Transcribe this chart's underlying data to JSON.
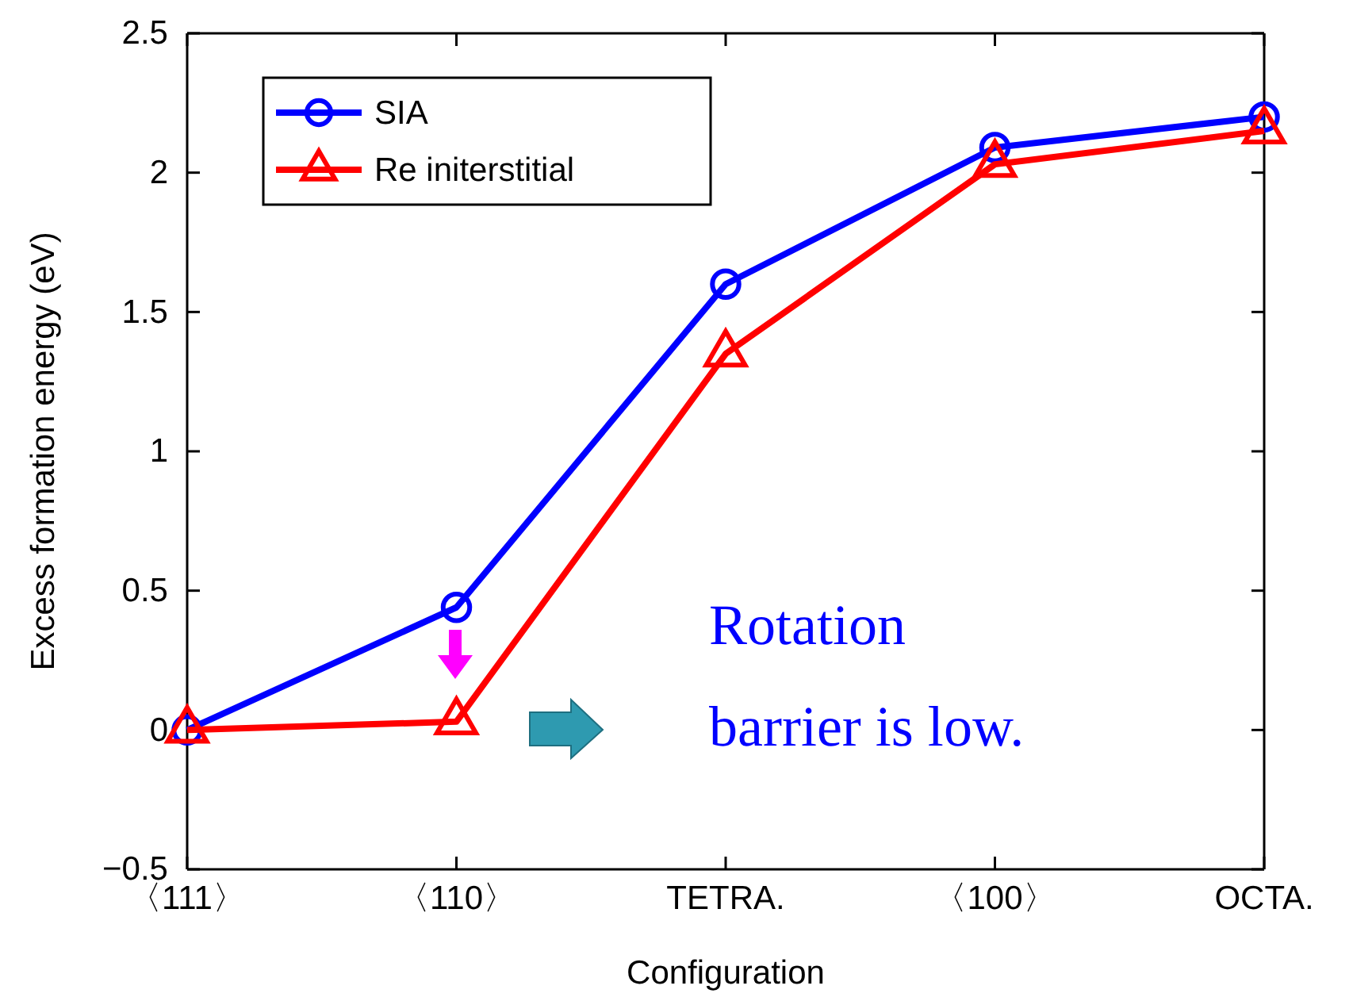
{
  "chart_data": {
    "type": "line",
    "xlabel": "Configuration",
    "ylabel": "Excess formation energy (eV)",
    "categories": [
      "〈111〉",
      "〈110〉",
      "TETRA.",
      "〈100〉",
      "OCTA."
    ],
    "series": [
      {
        "name": "SIA",
        "color": "#0000ff",
        "marker": "circle",
        "values": [
          0,
          0.44,
          1.6,
          2.09,
          2.2
        ]
      },
      {
        "name": "Re initerstitial",
        "color": "#ff0000",
        "marker": "triangle",
        "values": [
          0,
          0.03,
          1.35,
          2.03,
          2.15
        ]
      }
    ],
    "ylim": [
      -0.5,
      2.5
    ],
    "yticks": [
      {
        "value": -0.5,
        "label": "−0.5"
      },
      0,
      0.5,
      1,
      1.5,
      2,
      2.5
    ],
    "grid": false,
    "legend": "top left",
    "line_style": "solid",
    "annotations": [
      "Rotation\nbarrier is low."
    ]
  }
}
